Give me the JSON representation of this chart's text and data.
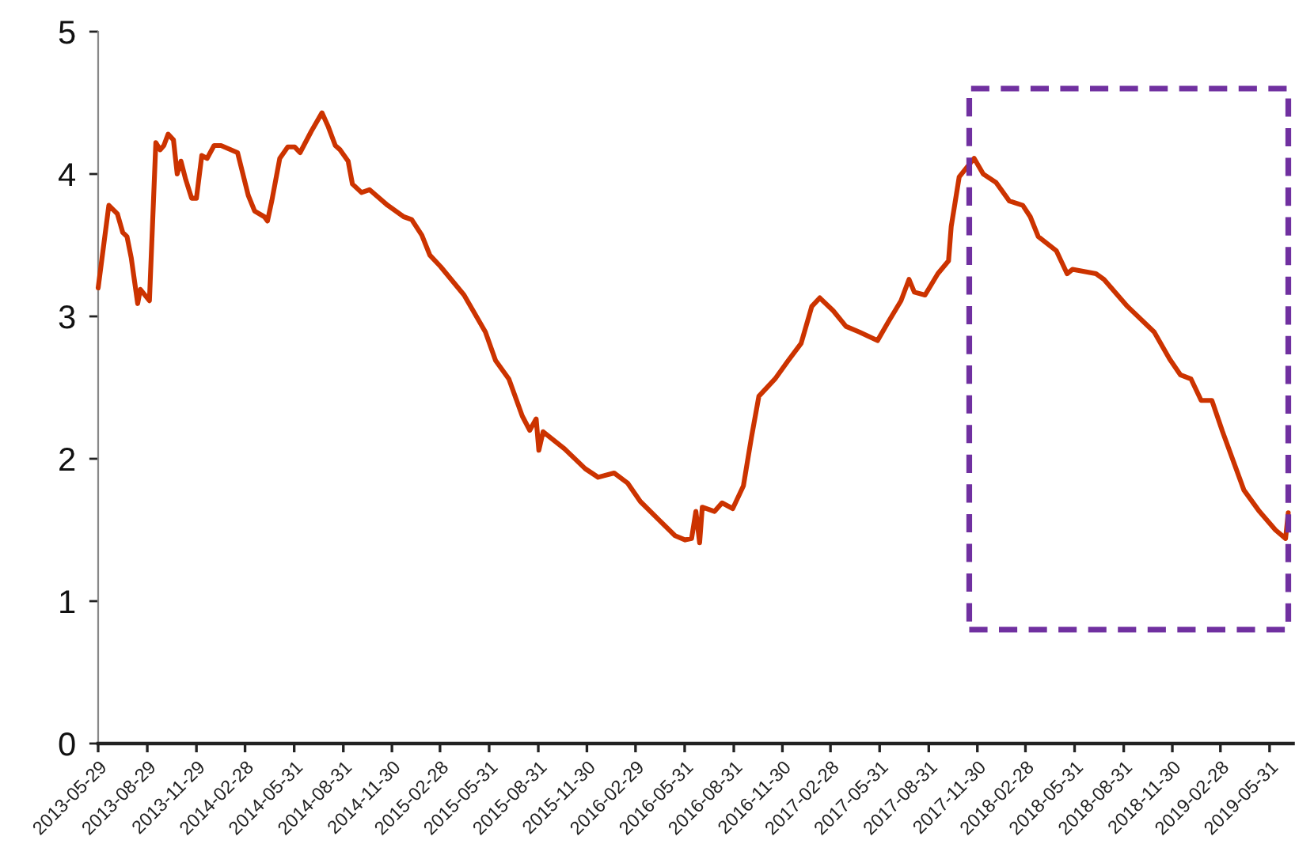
{
  "chart_data": {
    "type": "line",
    "x": [
      "2013-05-29",
      "2013-06-18",
      "2013-07-04",
      "2013-07-14",
      "2013-07-22",
      "2013-07-30",
      "2013-08-11",
      "2013-08-16",
      "2013-09-02",
      "2013-09-14",
      "2013-09-22",
      "2013-09-29",
      "2013-10-07",
      "2013-10-17",
      "2013-10-24",
      "2013-10-31",
      "2013-11-09",
      "2013-11-20",
      "2013-11-29",
      "2013-12-09",
      "2013-12-19",
      "2014-01-01",
      "2014-01-14",
      "2014-02-14",
      "2014-03-06",
      "2014-03-18",
      "2014-04-05",
      "2014-04-11",
      "2014-04-19",
      "2014-05-04",
      "2014-05-19",
      "2014-06-01",
      "2014-06-11",
      "2014-07-02",
      "2014-07-22",
      "2014-08-03",
      "2014-08-16",
      "2014-08-25",
      "2014-09-09",
      "2014-09-17",
      "2014-10-04",
      "2014-10-19",
      "2014-11-22",
      "2014-12-22",
      "2015-01-06",
      "2015-01-25",
      "2015-02-09",
      "2015-03-01",
      "2015-04-14",
      "2015-05-24",
      "2015-06-12",
      "2015-07-07",
      "2015-08-01",
      "2015-08-15",
      "2015-08-27",
      "2015-09-01",
      "2015-09-09",
      "2015-10-19",
      "2015-11-27",
      "2015-12-21",
      "2016-01-20",
      "2016-02-14",
      "2016-03-09",
      "2016-04-13",
      "2016-05-13",
      "2016-06-01",
      "2016-06-13",
      "2016-06-21",
      "2016-06-28",
      "2016-07-03",
      "2016-07-26",
      "2016-08-09",
      "2016-08-29",
      "2016-09-18",
      "2016-10-03",
      "2016-10-17",
      "2016-11-16",
      "2016-12-11",
      "2017-01-04",
      "2017-01-24",
      "2017-02-08",
      "2017-03-05",
      "2017-03-29",
      "2017-04-23",
      "2017-05-27",
      "2017-06-16",
      "2017-07-10",
      "2017-07-25",
      "2017-08-04",
      "2017-08-24",
      "2017-09-17",
      "2017-10-07",
      "2017-10-12",
      "2017-10-27",
      "2017-11-24",
      "2017-12-11",
      "2018-01-04",
      "2018-01-29",
      "2018-02-23",
      "2018-03-09",
      "2018-03-24",
      "2018-04-27",
      "2018-05-17",
      "2018-05-27",
      "2018-07-10",
      "2018-07-25",
      "2018-09-07",
      "2018-10-27",
      "2018-11-25",
      "2018-12-15",
      "2019-01-04",
      "2019-01-23",
      "2019-02-12",
      "2019-03-04",
      "2019-04-13",
      "2019-05-12",
      "2019-06-11",
      "2019-06-30",
      "2019-07-05"
    ],
    "series": [
      {
        "color": "#cc3300",
        "values": [
          3.2,
          3.78,
          3.72,
          3.59,
          3.56,
          3.41,
          3.09,
          3.19,
          3.11,
          4.22,
          4.17,
          4.2,
          4.28,
          4.24,
          4.0,
          4.09,
          3.96,
          3.83,
          3.83,
          4.13,
          4.11,
          4.2,
          4.2,
          4.15,
          3.85,
          3.74,
          3.7,
          3.67,
          3.81,
          4.11,
          4.19,
          4.19,
          4.15,
          4.3,
          4.43,
          4.33,
          4.2,
          4.17,
          4.09,
          3.93,
          3.87,
          3.89,
          3.78,
          3.7,
          3.68,
          3.57,
          3.43,
          3.35,
          3.15,
          2.89,
          2.69,
          2.56,
          2.3,
          2.2,
          2.28,
          2.06,
          2.19,
          2.07,
          1.93,
          1.87,
          1.9,
          1.83,
          1.7,
          1.57,
          1.46,
          1.43,
          1.44,
          1.63,
          1.41,
          1.66,
          1.63,
          1.69,
          1.65,
          1.81,
          2.15,
          2.44,
          2.56,
          2.69,
          2.81,
          3.07,
          3.13,
          3.04,
          2.93,
          2.89,
          2.83,
          2.96,
          3.11,
          3.26,
          3.17,
          3.15,
          3.3,
          3.39,
          3.63,
          3.98,
          4.11,
          4.0,
          3.94,
          3.81,
          3.78,
          3.7,
          3.56,
          3.46,
          3.3,
          3.33,
          3.3,
          3.26,
          3.07,
          2.89,
          2.7,
          2.59,
          2.56,
          2.41,
          2.41,
          2.19,
          1.78,
          1.63,
          1.5,
          1.44,
          1.62
        ]
      }
    ],
    "xlim": [
      "2013-05-29",
      "2019-07-14"
    ],
    "xticks": [
      "2013-05-29",
      "2013-08-29",
      "2013-11-29",
      "2014-02-28",
      "2014-05-31",
      "2014-08-31",
      "2014-11-30",
      "2015-02-28",
      "2015-05-31",
      "2015-08-31",
      "2015-11-30",
      "2016-02-29",
      "2016-05-31",
      "2016-08-31",
      "2016-11-30",
      "2017-02-28",
      "2017-05-31",
      "2017-08-31",
      "2017-11-30",
      "2018-02-28",
      "2018-05-31",
      "2018-08-31",
      "2018-11-30",
      "2019-02-28",
      "2019-05-31"
    ],
    "ylim": [
      0,
      5
    ],
    "yticks": [
      0,
      1,
      2,
      3,
      4,
      5
    ]
  }
}
